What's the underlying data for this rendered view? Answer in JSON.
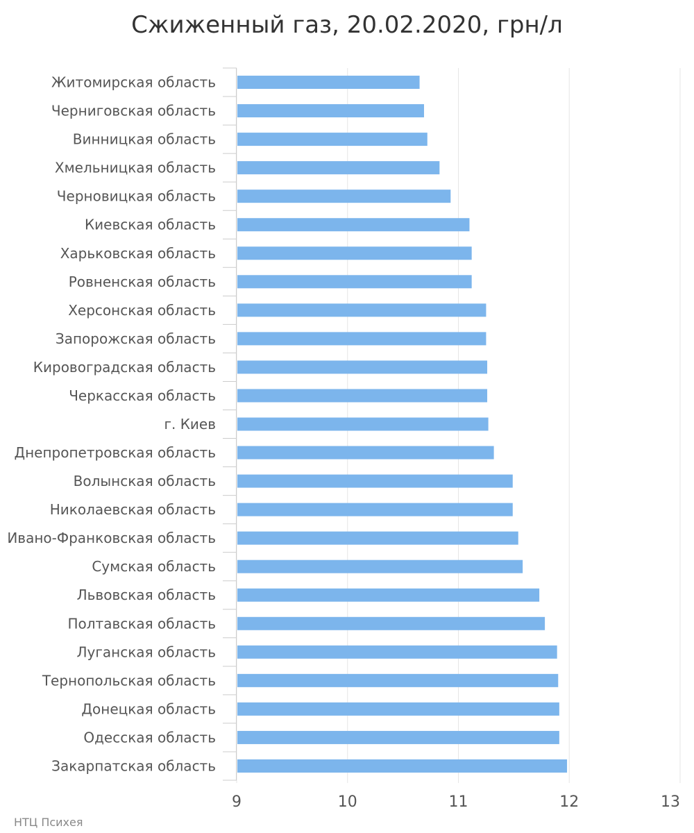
{
  "chart_data": {
    "type": "bar",
    "orientation": "horizontal",
    "title": "Сжиженный газ, 20.02.2020, грн/л",
    "xlabel": "",
    "ylabel": "",
    "xlim": [
      9,
      13
    ],
    "xticks": [
      9,
      10,
      11,
      12,
      13
    ],
    "grid": true,
    "bar_color": "#7cb5ec",
    "categories": [
      "Житомирская область",
      "Черниговская область",
      "Винницкая область",
      "Хмельницкая область",
      "Черновицкая область",
      "Киевская область",
      "Харьковская область",
      "Ровненская область",
      "Херсонская область",
      "Запорожская область",
      "Кировоградская область",
      "Черкасская область",
      "г. Киев",
      "Днепропетровская область",
      "Волынская область",
      "Николаевская область",
      "Ивано-Франковская область",
      "Сумская область",
      "Львовская область",
      "Полтавская область",
      "Луганская область",
      "Тернопольская область",
      "Донецкая область",
      "Одесская область",
      "Закарпатская область"
    ],
    "values": [
      10.65,
      10.69,
      10.72,
      10.83,
      10.93,
      11.1,
      11.12,
      11.12,
      11.25,
      11.25,
      11.26,
      11.26,
      11.27,
      11.32,
      11.49,
      11.49,
      11.54,
      11.58,
      11.73,
      11.78,
      11.89,
      11.9,
      11.91,
      11.91,
      11.98
    ]
  },
  "credit": "НТЦ Психея"
}
